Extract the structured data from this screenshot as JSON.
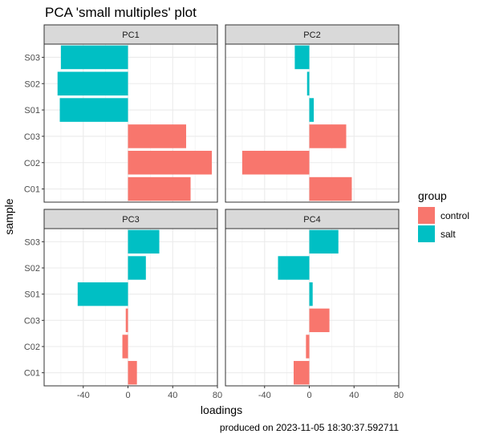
{
  "chart_data": {
    "type": "bar",
    "orientation": "horizontal",
    "title": "PCA 'small multiples' plot",
    "xlabel": "loadings",
    "ylabel": "sample",
    "caption": "produced on 2023-11-05 18:30:37.592711",
    "categories": [
      "C01",
      "C02",
      "C03",
      "S01",
      "S02",
      "S03"
    ],
    "xlim": [
      -75,
      80
    ],
    "xticks": [
      -40,
      0,
      40,
      80
    ],
    "xtick_labels": [
      "-40",
      "0",
      "40",
      "80"
    ],
    "grid": true,
    "legend": {
      "title": "group",
      "position": "right",
      "entries": [
        {
          "label": "control",
          "color": "#F8766D"
        },
        {
          "label": "salt",
          "color": "#00BFC4"
        }
      ]
    },
    "sample_groups": [
      "control",
      "control",
      "control",
      "salt",
      "salt",
      "salt"
    ],
    "panels": [
      {
        "name": "PC1",
        "values": [
          56,
          75,
          52,
          -61,
          -63,
          -60
        ]
      },
      {
        "name": "PC2",
        "values": [
          38,
          -60,
          33,
          4,
          -2,
          -13
        ]
      },
      {
        "name": "PC3",
        "values": [
          8,
          -5,
          -2,
          -45,
          16,
          28
        ]
      },
      {
        "name": "PC4",
        "values": [
          -14,
          -3,
          18,
          3,
          -28,
          26
        ]
      }
    ]
  }
}
